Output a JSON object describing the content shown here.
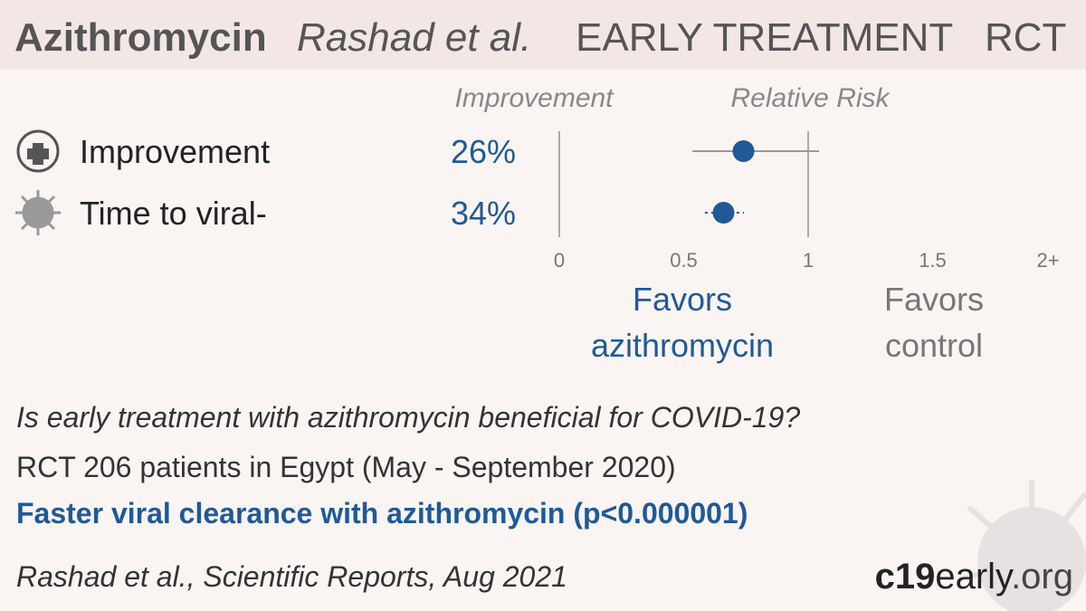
{
  "header": {
    "drug": "Azithromycin",
    "study": "Rashad et al.",
    "stage": "EARLY TREATMENT",
    "design": "RCT"
  },
  "chart_data": {
    "type": "forest",
    "column_headers": {
      "improvement": "Improvement",
      "risk": "Relative Risk"
    },
    "categories": [
      "Improvement",
      "Time to viral-"
    ],
    "improvement": [
      "26%",
      "34%"
    ],
    "values": [
      0.74,
      0.66
    ],
    "ci_low": [
      0.535,
      0.585
    ],
    "ci_high": [
      1.044,
      0.742
    ],
    "color": "#1f5a96",
    "reference": 1,
    "xlim": [
      0,
      2
    ],
    "xticks": [
      0,
      0.5,
      1,
      1.5,
      {
        "value": 2,
        "label": "2+"
      }
    ],
    "favors_left": [
      "Favors",
      "azithromycin"
    ],
    "favors_right": [
      "Favors",
      "control"
    ]
  },
  "summary": {
    "question": "Is early treatment with azithromycin beneficial for COVID-19?",
    "details": "RCT 206 patients in Egypt (May - September 2020)",
    "conclusion": "Faster viral clearance with azithromycin (p<0.000001)"
  },
  "footer": {
    "citation": "Rashad et al., Scientific Reports, Aug 2021",
    "logo": [
      "c19",
      "early",
      ".org"
    ]
  }
}
